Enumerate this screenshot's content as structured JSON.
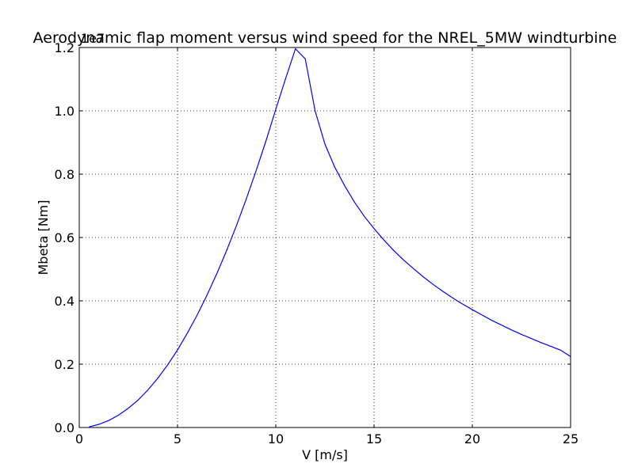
{
  "chart_data": {
    "type": "line",
    "title": "Aerodynamic flap moment versus wind speed for the NREL_5MW windturbine",
    "xlabel": "V [m/s]",
    "ylabel": "Mbeta [Nm]",
    "offset_label": "1e7",
    "xlim": [
      0,
      25
    ],
    "ylim": [
      0,
      1.2
    ],
    "y_scale_factor": 10000000,
    "grid": true,
    "x_ticks": [
      0,
      5,
      10,
      15,
      20,
      25
    ],
    "y_ticks": [
      0.0,
      0.2,
      0.4,
      0.6,
      0.8,
      1.0,
      1.2
    ],
    "x_tick_labels": [
      "0",
      "5",
      "10",
      "15",
      "20",
      "25"
    ],
    "y_tick_labels": [
      "0.0",
      "0.2",
      "0.4",
      "0.6",
      "0.8",
      "1.0",
      "1.2"
    ],
    "line_color": "#0000ff",
    "series": [
      {
        "x": [
          0.5,
          1.0,
          1.5,
          2.0,
          2.5,
          3.0,
          3.5,
          4.0,
          4.5,
          5.0,
          5.5,
          6.0,
          6.5,
          7.0,
          7.5,
          8.0,
          8.5,
          9.0,
          9.5,
          10.0,
          10.5,
          11.0,
          11.5,
          12.0,
          12.5,
          13.0,
          13.5,
          14.0,
          14.5,
          15.0,
          15.5,
          16.0,
          16.5,
          17.0,
          17.5,
          18.0,
          18.5,
          19.0,
          19.5,
          20.0,
          20.5,
          21.0,
          21.5,
          22.0,
          22.5,
          23.0,
          23.5,
          24.0,
          24.5,
          25.0
        ],
        "values": [
          0.002,
          0.01,
          0.022,
          0.039,
          0.061,
          0.087,
          0.119,
          0.156,
          0.198,
          0.245,
          0.298,
          0.355,
          0.418,
          0.486,
          0.559,
          0.638,
          0.722,
          0.811,
          0.905,
          1.005,
          1.102,
          1.196,
          1.164,
          1.0,
          0.895,
          0.822,
          0.764,
          0.712,
          0.667,
          0.628,
          0.592,
          0.559,
          0.529,
          0.502,
          0.476,
          0.452,
          0.43,
          0.409,
          0.39,
          0.372,
          0.355,
          0.338,
          0.323,
          0.308,
          0.294,
          0.281,
          0.268,
          0.256,
          0.244,
          0.224
        ]
      }
    ]
  }
}
